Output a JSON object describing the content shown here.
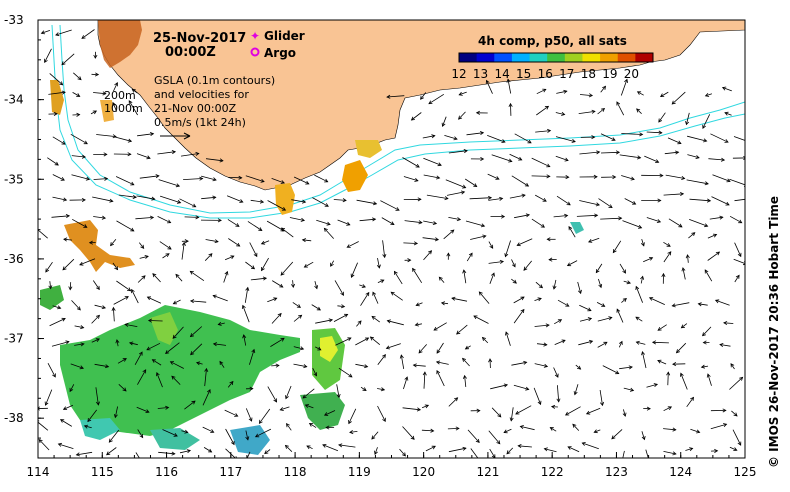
{
  "map": {
    "date_title": "25-Nov-2017",
    "time_title": "00:00Z",
    "legend": {
      "glider_label": "Glider",
      "argo_label": "Argo",
      "glider_color": "#e000e0",
      "argo_color": "#e000e0"
    },
    "colorbar": {
      "title": "4h comp, p50, all sats",
      "ticks": [
        "12",
        "13",
        "14",
        "15",
        "16",
        "17",
        "18",
        "19",
        "20"
      ],
      "min": 12,
      "max": 21,
      "colors": [
        "#000080",
        "#0000d0",
        "#0050ff",
        "#00b0ff",
        "#20d0c0",
        "#40c040",
        "#a0d020",
        "#f0e000",
        "#f0a000",
        "#e05000",
        "#b00000"
      ]
    },
    "annotation": {
      "line1": "GSLA (0.1m contours)",
      "line2": "and velocities for",
      "line3": "21-Nov 00:00Z",
      "line4": "0.5m/s (1kt 24h)"
    },
    "depth_labels": [
      "200m",
      "1000m"
    ],
    "x_ticks": [
      "114",
      "115",
      "116",
      "117",
      "118",
      "119",
      "120",
      "121",
      "122",
      "123",
      "124",
      "125"
    ],
    "y_ticks": [
      "-33",
      "-34",
      "-35",
      "-36",
      "-37",
      "-38"
    ],
    "x_range": [
      114,
      125
    ],
    "y_range": [
      -38.5,
      -33
    ],
    "credit": "© IMOS 26-Nov-2017 20:36 Hobart Time",
    "colors": {
      "land": "#f9c494",
      "isobath": "#30d8e0",
      "arrow": "#000000"
    }
  }
}
